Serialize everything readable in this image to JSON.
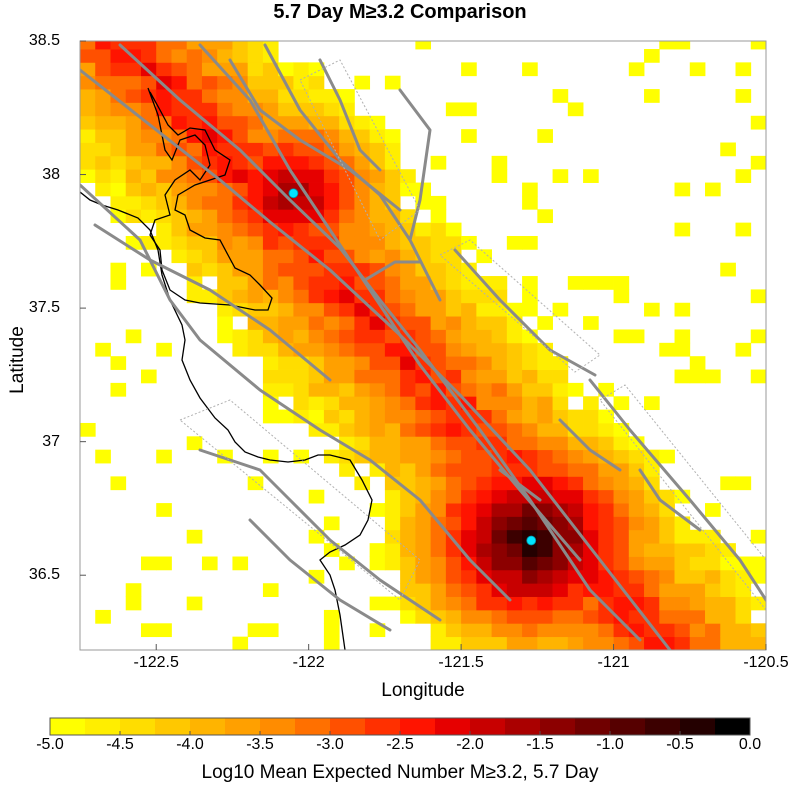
{
  "title": "5.7 Day M≥3.2 Comparison",
  "x_axis": {
    "label": "Longitude",
    "range": [
      -122.75,
      -120.5
    ],
    "ticks": [
      "-122.5",
      "-122",
      "-121.5",
      "-121",
      "-120.5"
    ],
    "tick_values": [
      -122.5,
      -122.0,
      -121.5,
      -121.0,
      -120.5
    ]
  },
  "y_axis": {
    "label": "Latitude",
    "range": [
      36.22,
      38.5
    ],
    "ticks": [
      "38.5",
      "38",
      "37.5",
      "37",
      "36.5"
    ],
    "tick_values": [
      38.5,
      38.0,
      37.5,
      37.0,
      36.5
    ]
  },
  "colorbar": {
    "label": "Log10 Mean Expected Number M≥3.2, 5.7 Day",
    "range": [
      -5.0,
      0.0
    ],
    "ticks": [
      "-5.0",
      "-4.5",
      "-4.0",
      "-3.5",
      "-3.0",
      "-2.5",
      "-2.0",
      "-1.5",
      "-1.0",
      "-0.5",
      "0.0"
    ],
    "tick_values": [
      -5.0,
      -4.5,
      -4.0,
      -3.5,
      -3.0,
      -2.5,
      -2.0,
      -1.5,
      -1.0,
      -0.5,
      0.0
    ],
    "colors": [
      "#ffff00",
      "#ffee00",
      "#ffdd00",
      "#ffc800",
      "#ffb400",
      "#ffa000",
      "#ff8c00",
      "#ff7000",
      "#ff5000",
      "#ff3000",
      "#ff1400",
      "#e60000",
      "#c80000",
      "#aa0000",
      "#8c0000",
      "#700000",
      "#560000",
      "#3c0000",
      "#240000",
      "#000000"
    ]
  },
  "chart_data": {
    "type": "heatmap",
    "title": "5.7 Day M≥3.2 Comparison",
    "xlabel": "Longitude",
    "ylabel": "Latitude",
    "xlim": [
      -122.75,
      -120.5
    ],
    "ylim": [
      36.22,
      38.5
    ],
    "grid_cell_deg": 0.05,
    "value_label": "Log10 Mean Expected Number M≥3.2, 5.7 Day",
    "value_range": [
      -5.0,
      0.0
    ],
    "hotspots": [
      {
        "lon": -122.05,
        "lat": 37.93,
        "peak_log10": -1.3
      },
      {
        "lon": -121.27,
        "lat": 36.63,
        "peak_log10": -0.3
      }
    ],
    "trend_band": {
      "from": [
        -122.6,
        38.5
      ],
      "to": [
        -120.9,
        36.3
      ]
    },
    "epicenters": [
      {
        "lon": -122.05,
        "lat": 37.93
      },
      {
        "lon": -121.27,
        "lat": 36.63
      }
    ]
  }
}
